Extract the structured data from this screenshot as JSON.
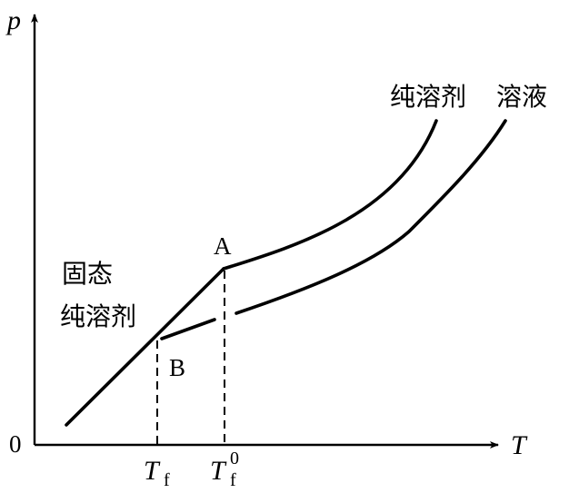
{
  "axes": {
    "y_label": "p",
    "x_label": "T",
    "origin_label": "0"
  },
  "ticks": {
    "tf": {
      "main": "T",
      "sub": "f"
    },
    "tf0": {
      "main": "T",
      "sub": "f",
      "sup": "0"
    }
  },
  "points": {
    "a": "A",
    "b": "B"
  },
  "curve_labels": {
    "pure_solvent": "纯溶剂",
    "solution": "溶液",
    "solid_line1": "固态",
    "solid_line2": "纯溶剂"
  }
}
